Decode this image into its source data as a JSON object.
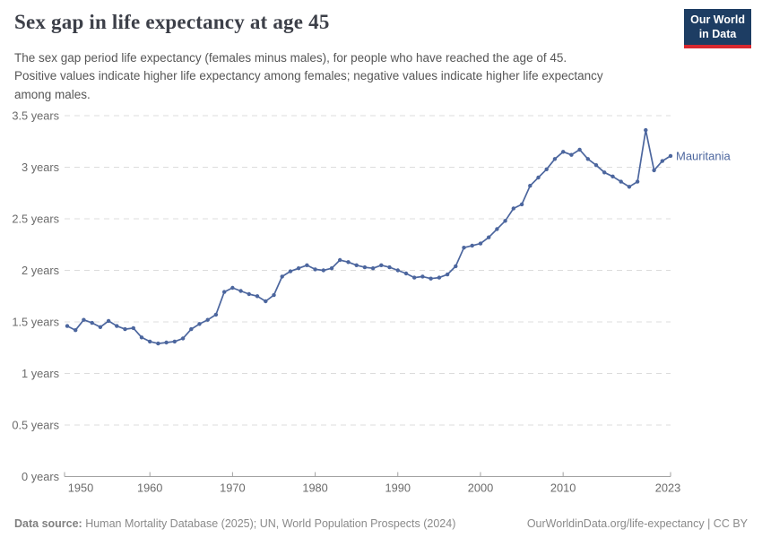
{
  "header": {
    "title": "Sex gap in life expectancy at age 45",
    "subtitle_lines": [
      "The sex gap period life expectancy (females minus males), for people who have reached the age of 45.",
      "Positive values indicate higher life expectancy among females; negative values indicate higher life expectancy",
      "among males."
    ],
    "logo_line1": "Our World",
    "logo_line2": "in Data"
  },
  "footer": {
    "data_source_label": "Data source:",
    "data_source_text": " Human Mortality Database (2025); UN, World Population Prospects (2024)",
    "link_text": "OurWorldinData.org/life-expectancy | CC BY"
  },
  "colors": {
    "line": "#4c669e",
    "entity_label": "#4c669e",
    "grid": "#dcdcdc",
    "axis": "#a1a1a1",
    "tick_text": "#6b6b6b",
    "logo_bg": "#1d3d63",
    "logo_stripe": "#d8282f"
  },
  "chart_data": {
    "type": "line",
    "title": "Sex gap in life expectancy at age 45",
    "xlabel": "",
    "ylabel": "years",
    "grid": "horizontal-dashed",
    "legend_position": "end-of-line-label",
    "ylim": [
      0,
      3.5
    ],
    "x_ticks": [
      1950,
      1960,
      1970,
      1980,
      1990,
      2000,
      2010,
      2023
    ],
    "y_ticks": [
      {
        "value": 0,
        "label": "0 years"
      },
      {
        "value": 0.5,
        "label": "0.5 years"
      },
      {
        "value": 1,
        "label": "1 years"
      },
      {
        "value": 1.5,
        "label": "1.5 years"
      },
      {
        "value": 2,
        "label": "2 years"
      },
      {
        "value": 2.5,
        "label": "2.5 years"
      },
      {
        "value": 3,
        "label": "3 years"
      },
      {
        "value": 3.5,
        "label": "3.5 years"
      }
    ],
    "series": [
      {
        "name": "Mauritania",
        "start_year": 1950,
        "end_year": 2023,
        "values": [
          1.46,
          1.42,
          1.52,
          1.49,
          1.45,
          1.51,
          1.46,
          1.43,
          1.44,
          1.35,
          1.31,
          1.29,
          1.3,
          1.31,
          1.34,
          1.43,
          1.48,
          1.52,
          1.57,
          1.79,
          1.83,
          1.8,
          1.77,
          1.75,
          1.7,
          1.76,
          1.94,
          1.99,
          2.02,
          2.05,
          2.01,
          2.0,
          2.02,
          2.1,
          2.08,
          2.05,
          2.03,
          2.02,
          2.05,
          2.03,
          2.0,
          1.97,
          1.93,
          1.94,
          1.92,
          1.93,
          1.96,
          2.04,
          2.22,
          2.24,
          2.26,
          2.32,
          2.4,
          2.48,
          2.6,
          2.64,
          2.82,
          2.9,
          2.98,
          3.08,
          3.15,
          3.12,
          3.17,
          3.08,
          3.02,
          2.95,
          2.91,
          2.86,
          2.81,
          2.86,
          3.36,
          2.97,
          3.06,
          3.11
        ]
      }
    ]
  }
}
